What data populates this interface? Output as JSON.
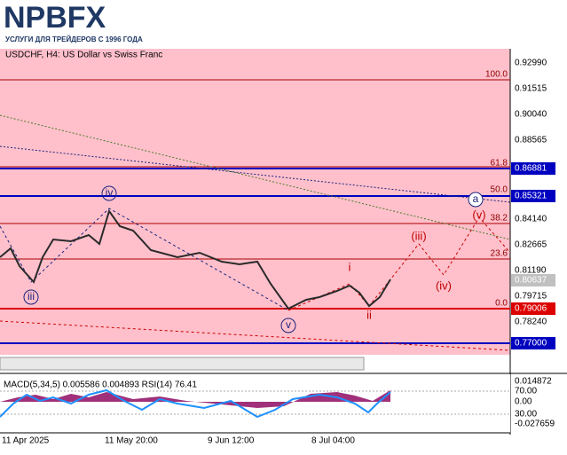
{
  "header": {
    "logo": "NPBFX",
    "tagline": "УСЛУГИ ДЛЯ ТРЕЙДЕРОВ С 1996 ГОДА"
  },
  "chart": {
    "title": "USDCHF, H4:  US Dollar vs Swiss Franc",
    "price_labels": [
      "0.92990",
      "0.91515",
      "0.90040",
      "0.88565",
      "0.84140",
      "0.82665",
      "0.81190",
      "0.79715",
      "0.78240"
    ],
    "highlighted_prices": [
      "0.86881",
      "0.85321",
      "0.80637",
      "0.79006",
      "0.77000"
    ],
    "fib_levels": [
      "100.0",
      "61.8",
      "50.0",
      "38.2",
      "23.6",
      "0.0"
    ],
    "wave_labels": [
      "iii",
      "iv",
      "v",
      "i",
      "ii",
      "(iii)",
      "(iv)",
      "(v)",
      "a"
    ]
  },
  "indicator": {
    "title": "MACD(5,34,5) 0.005586 0.004893 RSI(14) 76.41",
    "axis_labels": [
      "0.014872",
      "70.00",
      "0.00",
      "30.00",
      "-0.027659"
    ]
  },
  "time_axis": [
    "11 Apr 2025",
    "11 May 20:00",
    "9 Jun 12:00",
    "8 Jul 04:00"
  ]
}
